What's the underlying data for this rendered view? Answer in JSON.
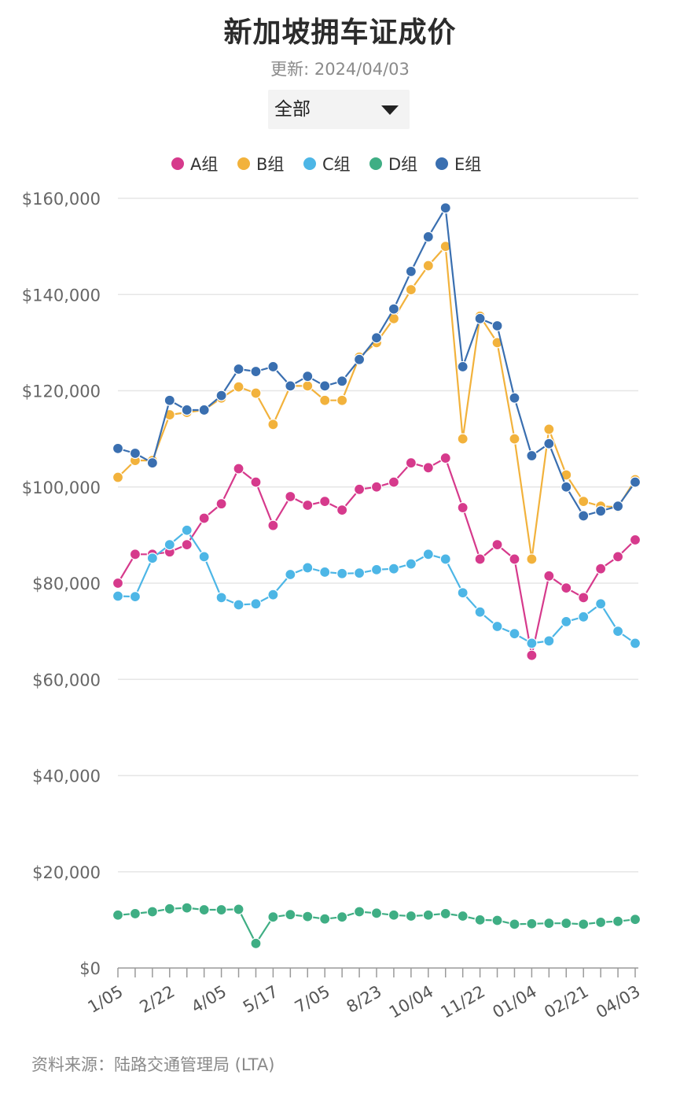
{
  "chart_data": {
    "type": "line",
    "title": "新加坡拥车证成价",
    "subtitle": "更新: 2024/04/03",
    "dropdown": {
      "selected": "全部",
      "icon": "caret-down-icon"
    },
    "source": "资料来源：陆路交通管理局 (LTA)",
    "ylim": [
      0,
      160000
    ],
    "y_ticks": [
      0,
      20000,
      40000,
      60000,
      80000,
      100000,
      120000,
      140000,
      160000
    ],
    "y_tick_labels": [
      "$0",
      "$20,000",
      "$40,000",
      "$60,000",
      "$80,000",
      "$100,000",
      "$120,000",
      "$140,000",
      "$160,000"
    ],
    "x_tick_labels": [
      {
        "index": 0,
        "label": "1/05"
      },
      {
        "index": 3,
        "label": "2/22"
      },
      {
        "index": 6,
        "label": "4/05"
      },
      {
        "index": 9,
        "label": "5/17"
      },
      {
        "index": 12,
        "label": "7/05"
      },
      {
        "index": 15,
        "label": "8/23"
      },
      {
        "index": 18,
        "label": "10/04"
      },
      {
        "index": 21,
        "label": "11/22"
      },
      {
        "index": 24,
        "label": "01/04"
      },
      {
        "index": 27,
        "label": "02/21"
      },
      {
        "index": 30,
        "label": "04/03"
      }
    ],
    "n_points": 31,
    "legend_position": "top",
    "grid": true,
    "series": [
      {
        "name": "A组",
        "color": "#d63a8c",
        "values": [
          80000,
          86000,
          86000,
          86500,
          88000,
          93500,
          96500,
          103800,
          101000,
          92000,
          98000,
          96200,
          97000,
          95200,
          99500,
          100000,
          101000,
          105000,
          104000,
          106000,
          95700,
          85000,
          88000,
          85000,
          65000,
          81500,
          79000,
          77000,
          83000,
          85500,
          89000
        ]
      },
      {
        "name": "B组",
        "color": "#f2b23c",
        "values": [
          102000,
          105500,
          105500,
          115000,
          115500,
          116000,
          118500,
          120800,
          119500,
          113000,
          121000,
          121000,
          118000,
          118000,
          127000,
          130000,
          135000,
          141000,
          146000,
          150000,
          110000,
          135500,
          130000,
          110000,
          85000,
          112000,
          102500,
          97000,
          96000,
          95800,
          101500
        ]
      },
      {
        "name": "C组",
        "color": "#4db6e6",
        "values": [
          77300,
          77200,
          85200,
          88000,
          91000,
          85500,
          77000,
          75500,
          75700,
          77600,
          81800,
          83200,
          82300,
          82000,
          82100,
          82800,
          83000,
          84000,
          86000,
          85000,
          78000,
          74000,
          71000,
          69500,
          67500,
          68000,
          72000,
          73000,
          75700,
          70000,
          67500
        ]
      },
      {
        "name": "D组",
        "color": "#3fae84",
        "values": [
          11000,
          11300,
          11700,
          12300,
          12500,
          12100,
          12100,
          12200,
          5100,
          10600,
          11100,
          10700,
          10200,
          10600,
          11700,
          11400,
          11000,
          10800,
          11000,
          11300,
          10800,
          10000,
          9900,
          9100,
          9200,
          9300,
          9300,
          9100,
          9500,
          9700,
          10100
        ]
      },
      {
        "name": "E组",
        "color": "#3a6fb0",
        "values": [
          108000,
          107000,
          105000,
          118000,
          116000,
          116000,
          119000,
          124500,
          124000,
          125000,
          121000,
          123000,
          121000,
          122000,
          126500,
          131000,
          137000,
          144800,
          152000,
          158000,
          125000,
          135000,
          133500,
          118500,
          106500,
          109000,
          100000,
          94000,
          95000,
          96000,
          101000
        ]
      }
    ]
  }
}
